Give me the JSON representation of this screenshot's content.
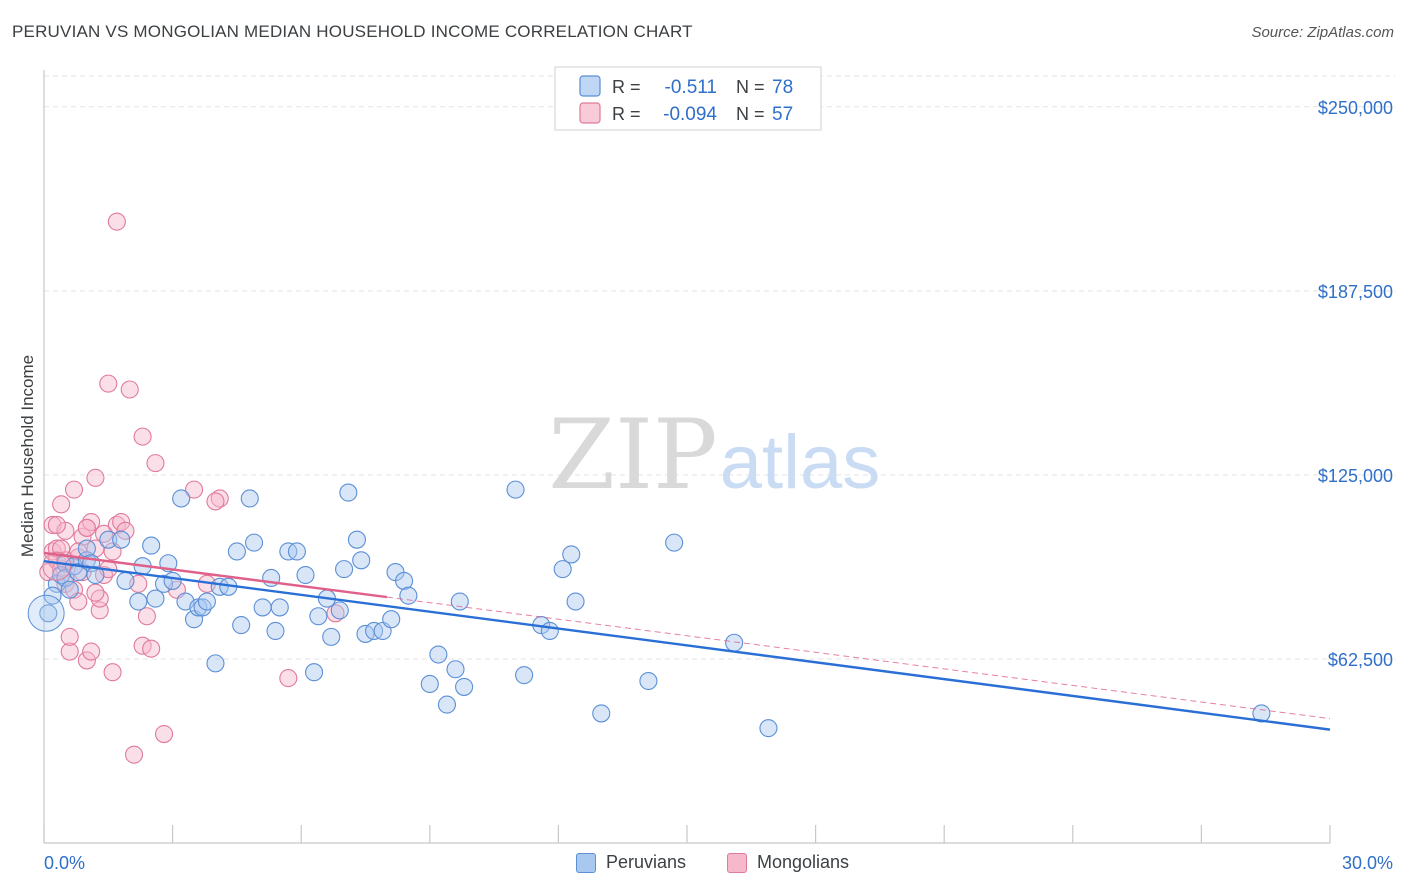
{
  "header": {
    "title": "PERUVIAN VS MONGOLIAN MEDIAN HOUSEHOLD INCOME CORRELATION CHART",
    "source": "Source: ZipAtlas.com"
  },
  "watermark": {
    "zip": "ZIP",
    "atlas": "atlas"
  },
  "colors": {
    "peruvian_fill": "#a9c8f0",
    "peruvian_stroke": "#5b8fd6",
    "peruvian_line": "#2a6fd6",
    "mongolian_fill": "#f6b9cc",
    "mongolian_stroke": "#e07a9a",
    "mongolian_line": "#e0608a",
    "value_text": "#2f6fc9"
  },
  "legend_top": {
    "rows": [
      {
        "r_label": "R =",
        "r_value": "-0.511",
        "n_label": "N =",
        "n_value": "78"
      },
      {
        "r_label": "R =",
        "r_value": "-0.094",
        "n_label": "N =",
        "n_value": "57"
      }
    ]
  },
  "legend_bottom": [
    "Peruvians",
    "Mongolians"
  ],
  "chart_data": {
    "type": "scatter",
    "title": "PERUVIAN VS MONGOLIAN MEDIAN HOUSEHOLD INCOME CORRELATION CHART",
    "xlabel": "",
    "ylabel": "Median Household Income",
    "xlim": [
      0,
      30
    ],
    "ylim": [
      0,
      262500
    ],
    "x_tick_labels": [
      "0.0%",
      "30.0%"
    ],
    "y_ticks": [
      62500,
      125000,
      187500,
      250000
    ],
    "y_tick_labels": [
      "$62,500",
      "$125,000",
      "$187,500",
      "$250,000"
    ],
    "grid": true,
    "legend_position": "top-center",
    "series": [
      {
        "name": "Peruvians",
        "r": -0.511,
        "n": 78,
        "trend": {
          "x": [
            0,
            30
          ],
          "y": [
            95700,
            38500
          ]
        },
        "points": [
          [
            0.1,
            78000
          ],
          [
            0.3,
            88000
          ],
          [
            0.4,
            91000
          ],
          [
            0.5,
            95000
          ],
          [
            0.5,
            90000
          ],
          [
            0.6,
            86000
          ],
          [
            0.7,
            94000
          ],
          [
            0.8,
            92000
          ],
          [
            1.0,
            96000
          ],
          [
            1.0,
            100000
          ],
          [
            1.1,
            95000
          ],
          [
            1.2,
            91000
          ],
          [
            1.5,
            103000
          ],
          [
            1.8,
            103000
          ],
          [
            1.9,
            89000
          ],
          [
            2.2,
            82000
          ],
          [
            2.3,
            94000
          ],
          [
            2.5,
            101000
          ],
          [
            2.6,
            83000
          ],
          [
            2.8,
            88000
          ],
          [
            2.9,
            95000
          ],
          [
            3.0,
            89000
          ],
          [
            3.2,
            117000
          ],
          [
            3.3,
            82000
          ],
          [
            3.5,
            76000
          ],
          [
            3.6,
            80000
          ],
          [
            3.7,
            80000
          ],
          [
            3.8,
            82000
          ],
          [
            4.0,
            61000
          ],
          [
            4.1,
            87000
          ],
          [
            4.3,
            87000
          ],
          [
            4.5,
            99000
          ],
          [
            4.6,
            74000
          ],
          [
            4.8,
            117000
          ],
          [
            4.9,
            102000
          ],
          [
            5.1,
            80000
          ],
          [
            5.3,
            90000
          ],
          [
            5.4,
            72000
          ],
          [
            5.5,
            80000
          ],
          [
            5.7,
            99000
          ],
          [
            5.9,
            99000
          ],
          [
            6.1,
            91000
          ],
          [
            6.3,
            58000
          ],
          [
            6.4,
            77000
          ],
          [
            6.6,
            83000
          ],
          [
            6.7,
            70000
          ],
          [
            6.9,
            79000
          ],
          [
            7.0,
            93000
          ],
          [
            7.1,
            119000
          ],
          [
            7.3,
            103000
          ],
          [
            7.4,
            96000
          ],
          [
            7.5,
            71000
          ],
          [
            7.7,
            72000
          ],
          [
            7.9,
            72000
          ],
          [
            8.1,
            76000
          ],
          [
            8.2,
            92000
          ],
          [
            8.4,
            89000
          ],
          [
            8.5,
            84000
          ],
          [
            9.0,
            54000
          ],
          [
            9.2,
            64000
          ],
          [
            9.4,
            47000
          ],
          [
            9.6,
            59000
          ],
          [
            9.7,
            82000
          ],
          [
            9.8,
            53000
          ],
          [
            11.0,
            120000
          ],
          [
            11.2,
            57000
          ],
          [
            11.6,
            74000
          ],
          [
            11.8,
            72000
          ],
          [
            12.1,
            93000
          ],
          [
            12.3,
            98000
          ],
          [
            12.4,
            82000
          ],
          [
            13.0,
            44000
          ],
          [
            14.1,
            55000
          ],
          [
            14.7,
            102000
          ],
          [
            16.1,
            68000
          ],
          [
            16.9,
            39000
          ],
          [
            28.4,
            44000
          ],
          [
            0.2,
            84000
          ]
        ]
      },
      {
        "name": "Mongolians",
        "r": -0.094,
        "n": 57,
        "trend": {
          "x": [
            0,
            8
          ],
          "y": [
            98500,
            83500
          ]
        },
        "points": [
          [
            0.1,
            92000
          ],
          [
            0.2,
            99000
          ],
          [
            0.2,
            108000
          ],
          [
            0.3,
            96000
          ],
          [
            0.3,
            100000
          ],
          [
            0.4,
            115000
          ],
          [
            0.4,
            93000
          ],
          [
            0.5,
            88000
          ],
          [
            0.5,
            106000
          ],
          [
            0.6,
            65000
          ],
          [
            0.6,
            70000
          ],
          [
            0.7,
            86000
          ],
          [
            0.7,
            120000
          ],
          [
            0.8,
            82000
          ],
          [
            0.8,
            97000
          ],
          [
            0.9,
            92000
          ],
          [
            0.9,
            104000
          ],
          [
            1.0,
            107000
          ],
          [
            1.0,
            62000
          ],
          [
            1.1,
            65000
          ],
          [
            1.1,
            109000
          ],
          [
            1.2,
            100000
          ],
          [
            1.2,
            124000
          ],
          [
            1.3,
            79000
          ],
          [
            1.3,
            83000
          ],
          [
            1.4,
            91000
          ],
          [
            1.4,
            105000
          ],
          [
            1.5,
            156000
          ],
          [
            1.6,
            99000
          ],
          [
            1.6,
            58000
          ],
          [
            1.7,
            211000
          ],
          [
            1.7,
            108000
          ],
          [
            1.8,
            109000
          ],
          [
            1.9,
            106000
          ],
          [
            2.0,
            154000
          ],
          [
            2.1,
            30000
          ],
          [
            2.2,
            88000
          ],
          [
            2.3,
            67000
          ],
          [
            2.4,
            77000
          ],
          [
            2.6,
            129000
          ],
          [
            2.3,
            138000
          ],
          [
            2.5,
            66000
          ],
          [
            2.8,
            37000
          ],
          [
            3.1,
            86000
          ],
          [
            3.5,
            120000
          ],
          [
            3.8,
            88000
          ],
          [
            4.1,
            117000
          ],
          [
            4.0,
            116000
          ],
          [
            5.7,
            56000
          ],
          [
            6.8,
            78000
          ],
          [
            0.3,
            108000
          ],
          [
            0.5,
            96000
          ],
          [
            0.8,
            99000
          ],
          [
            1.0,
            107000
          ],
          [
            1.5,
            93000
          ],
          [
            0.4,
            100000
          ],
          [
            1.2,
            85000
          ]
        ]
      }
    ]
  }
}
